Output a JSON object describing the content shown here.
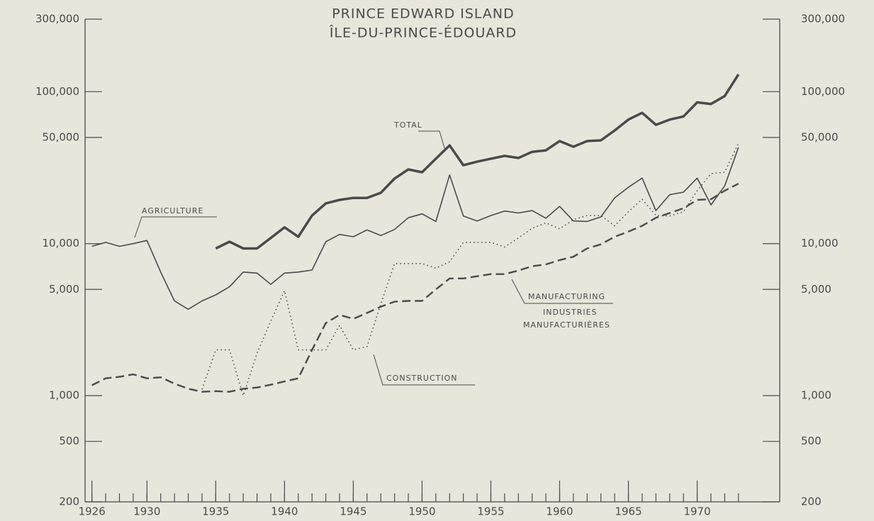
{
  "chart_data": {
    "type": "line",
    "title": "PRINCE EDWARD ISLAND",
    "subtitle": "ÎLE-DU-PRINCE-ÉDOUARD",
    "annotations": [
      "INDUSTRIES",
      "MANUFACTURIÈRES"
    ],
    "log_scale": true,
    "x": [
      1926,
      1927,
      1928,
      1929,
      1930,
      1931,
      1932,
      1933,
      1934,
      1935,
      1936,
      1937,
      1938,
      1939,
      1940,
      1941,
      1942,
      1943,
      1944,
      1945,
      1946,
      1947,
      1948,
      1949,
      1950,
      1951,
      1952,
      1953,
      1954,
      1955,
      1956,
      1957,
      1958,
      1959,
      1960,
      1961,
      1962,
      1963,
      1964,
      1965,
      1966,
      1967,
      1968,
      1969,
      1970,
      1971,
      1972,
      1973
    ],
    "xlim": [
      1925.5,
      1976
    ],
    "xticks": [
      1926,
      1930,
      1935,
      1940,
      1945,
      1950,
      1955,
      1960,
      1965,
      1970
    ],
    "ylim": [
      200,
      300000
    ],
    "yticks": [
      200,
      500,
      {
        "value": 1000,
        "label": "1,000"
      },
      {
        "value": 5000,
        "label": "5,000"
      },
      {
        "value": 10000,
        "label": "10,000"
      },
      {
        "value": 50000,
        "label": "50,000"
      },
      {
        "value": 100000,
        "label": "100,000"
      },
      {
        "value": 300000,
        "label": "300,000"
      }
    ],
    "series": [
      {
        "name": "TOTAL",
        "color": "#4a4a4a",
        "width": 3.5,
        "dash": "none",
        "values": [
          null,
          null,
          null,
          null,
          null,
          null,
          null,
          null,
          null,
          9300,
          10300,
          9300,
          9300,
          10900,
          12800,
          11100,
          15300,
          18400,
          19400,
          20000,
          20000,
          21600,
          26800,
          30800,
          29500,
          36200,
          44300,
          32800,
          34600,
          36200,
          37800,
          36600,
          40200,
          41100,
          47300,
          43400,
          47300,
          47800,
          55500,
          65500,
          72500,
          60500,
          65500,
          68700,
          85000,
          83000,
          93600,
          130000
        ]
      },
      {
        "name": "AGRICULTURE",
        "color": "#555555",
        "width": 1.6,
        "dash": "none",
        "values": [
          9600,
          10200,
          9600,
          10000,
          10500,
          6500,
          4200,
          3700,
          4200,
          4600,
          5200,
          6500,
          6400,
          5400,
          6400,
          6500,
          6700,
          10300,
          11500,
          11100,
          12300,
          11300,
          12400,
          14800,
          15700,
          14000,
          28300,
          15200,
          14100,
          15300,
          16400,
          15900,
          16500,
          14700,
          17600,
          14100,
          14000,
          15000,
          20000,
          23500,
          27000,
          16500,
          21000,
          21800,
          27000,
          18000,
          24000,
          43000
        ]
      },
      {
        "name": "CONSTRUCTION",
        "color": "#555555",
        "width": 1.6,
        "dash": "1.5 4",
        "values": [
          null,
          null,
          null,
          null,
          null,
          null,
          null,
          null,
          1100,
          2000,
          2000,
          1000,
          1900,
          3100,
          4900,
          2000,
          2000,
          2000,
          2900,
          2000,
          2100,
          4000,
          7400,
          7400,
          7400,
          6900,
          7600,
          10200,
          10200,
          10200,
          9500,
          10900,
          12600,
          13700,
          12500,
          14400,
          15300,
          15300,
          13100,
          16200,
          19600,
          15300,
          15200,
          16200,
          22300,
          28900,
          29500,
          45800
        ]
      },
      {
        "name": "MANUFACTURING",
        "color": "#4a4a4a",
        "width": 2.4,
        "dash": "12 6",
        "values": [
          1170,
          1300,
          1330,
          1380,
          1300,
          1320,
          1200,
          1110,
          1060,
          1070,
          1060,
          1110,
          1130,
          1180,
          1240,
          1300,
          2000,
          3000,
          3400,
          3200,
          3500,
          3850,
          4150,
          4200,
          4200,
          5000,
          5900,
          5900,
          6100,
          6300,
          6300,
          6650,
          7100,
          7300,
          7800,
          8200,
          9300,
          9900,
          11100,
          12000,
          13100,
          14800,
          15900,
          17100,
          19400,
          19600,
          22300,
          24800
        ]
      }
    ]
  }
}
